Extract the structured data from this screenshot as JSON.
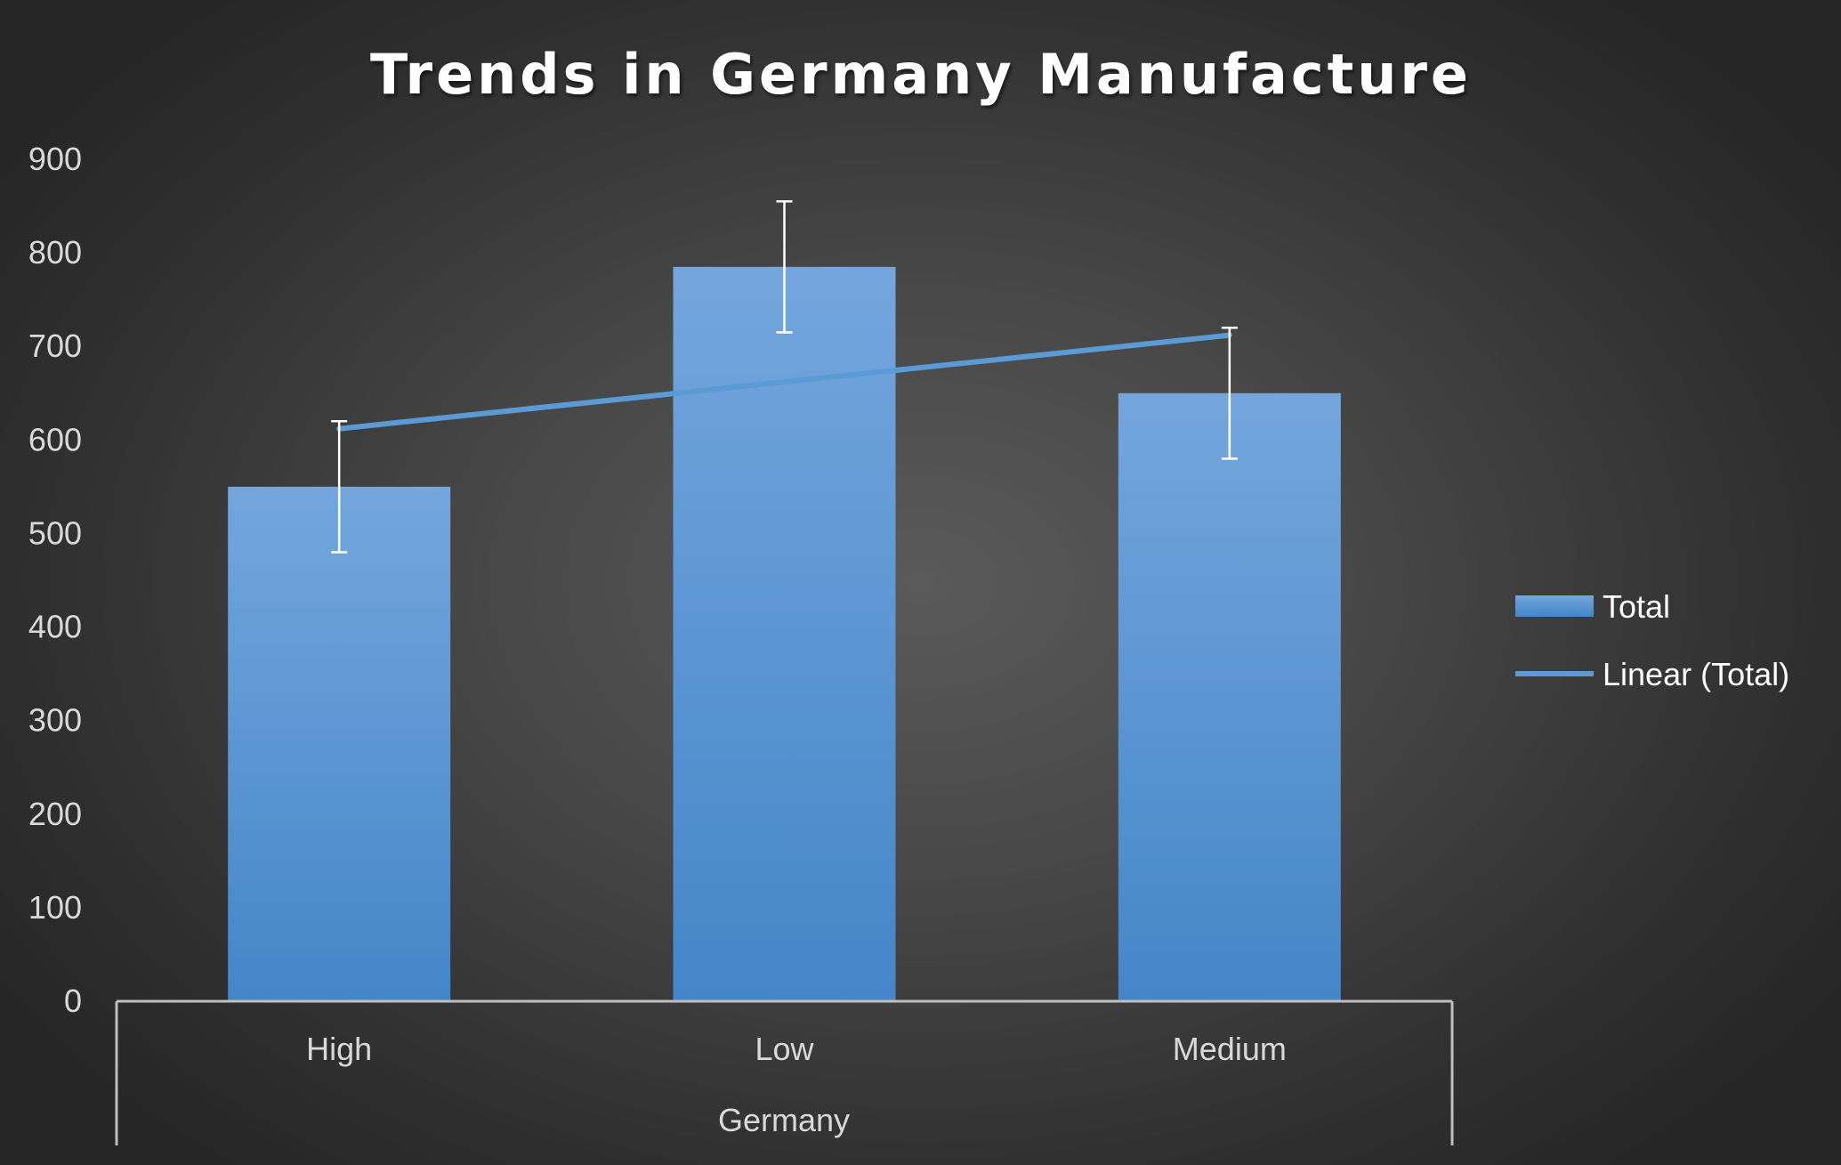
{
  "colors": {
    "bar_top": "#74a6dd",
    "bar_bottom": "#4486c8",
    "trend": "#5b9bd5",
    "error_bar": "#ffffff",
    "axis": "#bfbfbf",
    "text": "#d9d9d9"
  },
  "chart_data": {
    "type": "bar",
    "title": "Trends in Germany Manufacture",
    "categories": [
      "High",
      "Low",
      "Medium"
    ],
    "group_label": "Germany",
    "series": [
      {
        "name": "Total",
        "values": [
          550,
          785,
          650
        ],
        "error_plus": [
          70,
          70,
          70
        ],
        "error_minus": [
          70,
          70,
          70
        ]
      }
    ],
    "trendline": {
      "name": "Linear (Total)",
      "type": "linear",
      "values": [
        612,
        662,
        712
      ]
    },
    "ylim": [
      0,
      900
    ],
    "yticks": [
      "0",
      "100",
      "200",
      "300",
      "400",
      "500",
      "600",
      "700",
      "800",
      "900"
    ],
    "grid": false,
    "legend": {
      "position": "right",
      "entries": [
        "Total",
        "Linear (Total)"
      ]
    }
  }
}
